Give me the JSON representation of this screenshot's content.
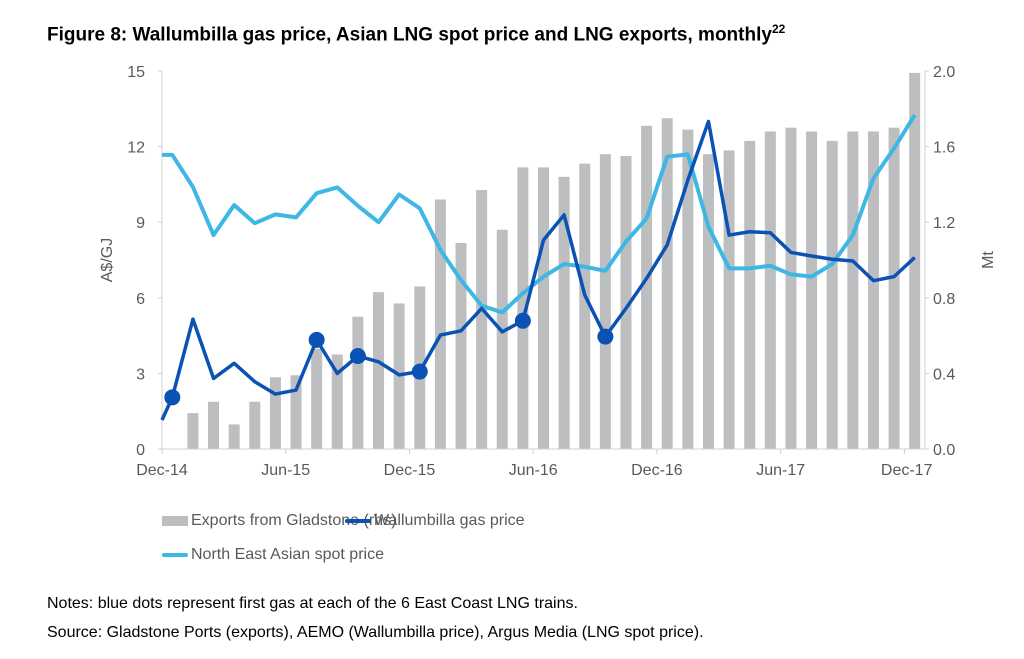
{
  "title": "Figure 8: Wallumbilla gas price, Asian LNG spot price and LNG exports, monthly",
  "title_superscript": "22",
  "notes": "Notes: blue dots represent first gas at each of the 6 East Coast LNG trains.",
  "source": "Source: Gladstone Ports (exports), AEMO (Wallumbilla price), Argus Media (LNG spot price).",
  "chart_data": {
    "type": "bar+line",
    "categories": [
      "Dec-14",
      "Jan-15",
      "Feb-15",
      "Mar-15",
      "Apr-15",
      "May-15",
      "Jun-15",
      "Jul-15",
      "Aug-15",
      "Sep-15",
      "Oct-15",
      "Nov-15",
      "Dec-15",
      "Jan-16",
      "Feb-16",
      "Mar-16",
      "Apr-16",
      "May-16",
      "Jun-16",
      "Jul-16",
      "Aug-16",
      "Sep-16",
      "Oct-16",
      "Nov-16",
      "Dec-16",
      "Jan-17",
      "Feb-17",
      "Mar-17",
      "Apr-17",
      "May-17",
      "Jun-17",
      "Jul-17",
      "Aug-17",
      "Sep-17",
      "Oct-17",
      "Nov-17",
      "Dec-17"
    ],
    "x_tick_labels": [
      "Dec-14",
      "Jun-15",
      "Dec-15",
      "Jun-16",
      "Dec-16",
      "Jun-17",
      "Dec-17"
    ],
    "ylabel": "A$/GJ",
    "ylim": [
      0,
      15
    ],
    "y_ticks": [
      "0",
      "3",
      "6",
      "9",
      "12",
      "15"
    ],
    "y2label": "Mt",
    "y2lim": [
      0,
      2.0
    ],
    "y2_ticks": [
      "0.0",
      "0.4",
      "0.8",
      "1.2",
      "1.6",
      "2.0"
    ],
    "grid": false,
    "legend_position": "bottom",
    "series": [
      {
        "name": "Exports from Gladstone (rhs)",
        "type": "bar",
        "axis": "right",
        "color": "#bcbec0",
        "values": [
          0,
          0.19,
          0.25,
          0.13,
          0.25,
          0.38,
          0.39,
          0.53,
          0.5,
          0.7,
          0.83,
          0.77,
          0.86,
          1.32,
          1.09,
          1.37,
          1.16,
          1.49,
          1.49,
          1.44,
          1.51,
          1.56,
          1.55,
          1.71,
          1.75,
          1.69,
          1.56,
          1.58,
          1.63,
          1.68,
          1.7,
          1.68,
          1.63,
          1.68,
          1.68,
          1.7,
          1.99
        ]
      },
      {
        "name": "Wallumbilla gas price",
        "type": "line",
        "axis": "left",
        "color": "#0a52b4",
        "values": [
          2.05,
          5.15,
          2.8,
          3.4,
          2.67,
          2.18,
          2.34,
          4.33,
          3.0,
          3.69,
          3.46,
          2.94,
          3.07,
          4.52,
          4.69,
          5.58,
          4.65,
          5.09,
          8.29,
          9.29,
          6.11,
          4.46,
          5.58,
          6.77,
          8.1,
          10.67,
          13.0,
          8.49,
          8.62,
          8.58,
          7.8,
          7.66,
          7.53,
          7.46,
          6.68,
          6.84,
          7.6
        ],
        "first_gas_dots": [
          "Dec-14",
          "Jul-15",
          "Sep-15",
          "Dec-15",
          "May-16",
          "Sep-16"
        ]
      },
      {
        "name": "North East Asian spot price",
        "type": "line",
        "axis": "left",
        "color": "#3db7e4",
        "values": [
          11.67,
          10.4,
          8.49,
          9.68,
          8.96,
          9.31,
          9.19,
          10.15,
          10.38,
          9.65,
          9.0,
          10.1,
          9.55,
          7.9,
          6.7,
          5.69,
          5.42,
          6.18,
          6.84,
          7.34,
          7.23,
          7.07,
          8.23,
          9.15,
          11.6,
          11.69,
          8.82,
          7.17,
          7.17,
          7.27,
          6.93,
          6.84,
          7.34,
          8.49,
          10.74,
          11.93,
          13.25
        ]
      }
    ]
  }
}
